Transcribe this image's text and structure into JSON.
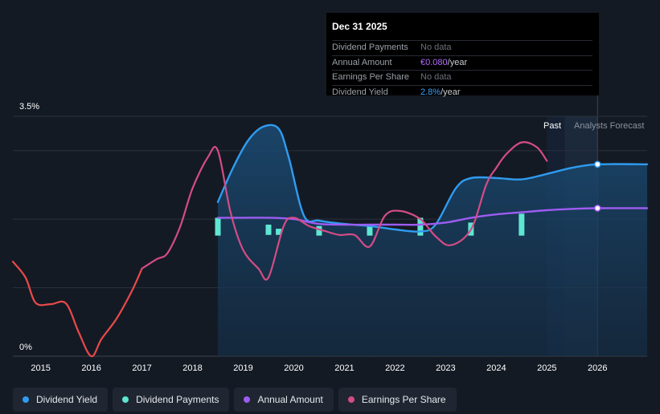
{
  "colors": {
    "dividend_yield": "#2f9cf0",
    "dividend_payments": "#5ee6d2",
    "annual_amount": "#9d5cf2",
    "earnings_per_share": "#d44c85",
    "eps_negative": "#e84a4a"
  },
  "tooltip": {
    "title": "Dec 31 2025",
    "rows": [
      {
        "label": "Dividend Payments",
        "value": "No data",
        "unit": ""
      },
      {
        "label": "Annual Amount",
        "value": "€0.080",
        "unit": "/year",
        "color": "#b46cff"
      },
      {
        "label": "Earnings Per Share",
        "value": "No data",
        "unit": ""
      },
      {
        "label": "Dividend Yield",
        "value": "2.8%",
        "unit": "/year",
        "color": "#3ea2ff"
      }
    ]
  },
  "legend": [
    {
      "label": "Dividend Yield",
      "color": "#2f9cf0"
    },
    {
      "label": "Dividend Payments",
      "color": "#5ee6d2"
    },
    {
      "label": "Annual Amount",
      "color": "#9d5cf2"
    },
    {
      "label": "Earnings Per Share",
      "color": "#d44c85"
    }
  ],
  "chart_data": {
    "type": "line",
    "title": "",
    "y_label_top": "3.5%",
    "y_label_bottom": "0%",
    "ylim": [
      0,
      3.5
    ],
    "xlim": [
      2014.45,
      2026.98
    ],
    "x_ticks": [
      "2015",
      "2016",
      "2017",
      "2018",
      "2019",
      "2020",
      "2021",
      "2022",
      "2023",
      "2024",
      "2025",
      "2026"
    ],
    "x_tick_values": [
      2015,
      2016,
      2017,
      2018,
      2019,
      2020,
      2021,
      2022,
      2023,
      2024,
      2025,
      2026
    ],
    "past_label": "Past",
    "forecast_label": "Analysts Forecast",
    "past_start": 2025.0,
    "forecast_start": 2025.35,
    "forecast_end": 2026.0,
    "series": [
      {
        "name": "Dividend Yield",
        "key": "dividend_yield",
        "filled": true,
        "points": [
          [
            2018.5,
            2.25
          ],
          [
            2018.8,
            2.75
          ],
          [
            2019.1,
            3.15
          ],
          [
            2019.4,
            3.35
          ],
          [
            2019.7,
            3.32
          ],
          [
            2019.9,
            2.9
          ],
          [
            2020.2,
            2.05
          ],
          [
            2020.5,
            1.98
          ],
          [
            2021.0,
            1.93
          ],
          [
            2021.5,
            1.9
          ],
          [
            2022.0,
            1.85
          ],
          [
            2022.5,
            1.82
          ],
          [
            2022.8,
            1.92
          ],
          [
            2023.2,
            2.45
          ],
          [
            2023.5,
            2.6
          ],
          [
            2024.0,
            2.6
          ],
          [
            2024.5,
            2.58
          ],
          [
            2025.0,
            2.66
          ],
          [
            2025.5,
            2.75
          ],
          [
            2026.0,
            2.8
          ],
          [
            2026.98,
            2.8
          ]
        ]
      },
      {
        "name": "Annual Amount",
        "key": "annual_amount",
        "points": [
          [
            2018.5,
            2.02
          ],
          [
            2019.0,
            2.02
          ],
          [
            2019.5,
            2.02
          ],
          [
            2020.0,
            2.0
          ],
          [
            2020.5,
            1.93
          ],
          [
            2021.0,
            1.92
          ],
          [
            2021.5,
            1.92
          ],
          [
            2022.0,
            1.92
          ],
          [
            2022.5,
            1.92
          ],
          [
            2023.0,
            1.95
          ],
          [
            2023.5,
            2.02
          ],
          [
            2024.0,
            2.07
          ],
          [
            2024.5,
            2.1
          ],
          [
            2025.0,
            2.13
          ],
          [
            2025.5,
            2.15
          ],
          [
            2026.0,
            2.16
          ],
          [
            2026.98,
            2.16
          ]
        ]
      },
      {
        "name": "Earnings Per Share",
        "key": "earnings_per_share",
        "negative_until": 2017.0,
        "points": [
          [
            2014.45,
            1.38
          ],
          [
            2014.7,
            1.15
          ],
          [
            2014.9,
            0.78
          ],
          [
            2015.2,
            0.76
          ],
          [
            2015.5,
            0.77
          ],
          [
            2015.75,
            0.35
          ],
          [
            2016.0,
            0.0
          ],
          [
            2016.2,
            0.25
          ],
          [
            2016.5,
            0.55
          ],
          [
            2016.8,
            0.95
          ],
          [
            2017.0,
            1.28
          ],
          [
            2017.3,
            1.42
          ],
          [
            2017.5,
            1.5
          ],
          [
            2017.75,
            1.88
          ],
          [
            2018.0,
            2.45
          ],
          [
            2018.3,
            2.9
          ],
          [
            2018.5,
            3.0
          ],
          [
            2018.75,
            2.1
          ],
          [
            2019.0,
            1.55
          ],
          [
            2019.3,
            1.28
          ],
          [
            2019.5,
            1.15
          ],
          [
            2019.8,
            1.9
          ],
          [
            2020.0,
            2.02
          ],
          [
            2020.3,
            1.9
          ],
          [
            2020.6,
            1.83
          ],
          [
            2020.9,
            1.77
          ],
          [
            2021.2,
            1.77
          ],
          [
            2021.5,
            1.6
          ],
          [
            2021.8,
            2.05
          ],
          [
            2022.1,
            2.12
          ],
          [
            2022.5,
            2.0
          ],
          [
            2022.8,
            1.75
          ],
          [
            2023.1,
            1.62
          ],
          [
            2023.5,
            1.85
          ],
          [
            2023.8,
            2.5
          ],
          [
            2024.0,
            2.75
          ],
          [
            2024.2,
            2.95
          ],
          [
            2024.5,
            3.12
          ],
          [
            2024.8,
            3.05
          ],
          [
            2025.0,
            2.85
          ]
        ]
      }
    ],
    "dividend_payments": [
      {
        "x": 2018.5,
        "top": 2.02,
        "bottom": 1.76
      },
      {
        "x": 2019.5,
        "top": 1.92,
        "bottom": 1.77
      },
      {
        "x": 2019.7,
        "top": 1.86,
        "bottom": 1.77
      },
      {
        "x": 2020.5,
        "top": 1.9,
        "bottom": 1.76
      },
      {
        "x": 2021.5,
        "top": 1.89,
        "bottom": 1.76
      },
      {
        "x": 2022.5,
        "top": 2.02,
        "bottom": 1.76
      },
      {
        "x": 2023.5,
        "top": 1.95,
        "bottom": 1.76
      },
      {
        "x": 2024.5,
        "top": 2.08,
        "bottom": 1.76
      }
    ],
    "markers": [
      {
        "series": "dividend_yield",
        "x": 2026.0,
        "y": 2.8
      },
      {
        "series": "annual_amount",
        "x": 2026.0,
        "y": 2.16
      }
    ]
  }
}
